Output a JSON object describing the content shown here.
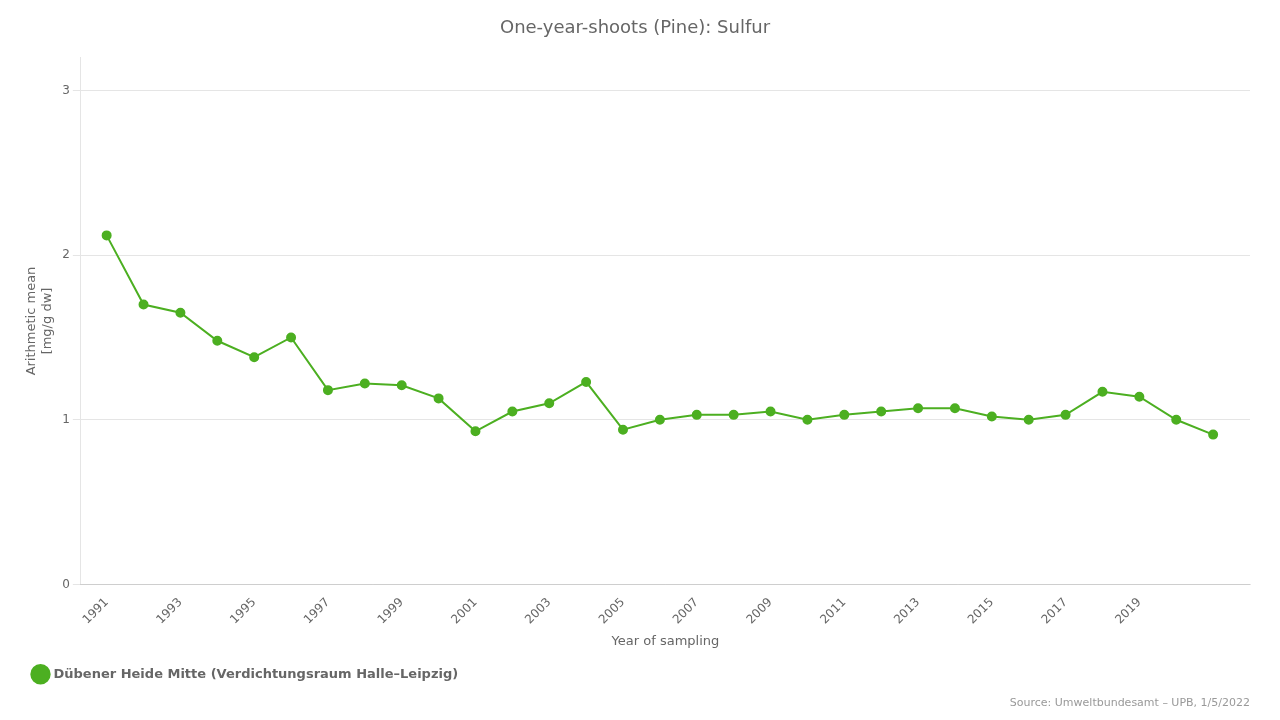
{
  "chart_data": {
    "type": "line",
    "title": "One-year-shoots (Pine): Sulfur",
    "xlabel": "Year of sampling",
    "ylabel": "Arithmetic mean\n[mg/g dw]",
    "annotations": [
      "Source: Umweltbundesamt – UPB, 1/5/2022"
    ],
    "x": [
      1991,
      1992,
      1993,
      1994,
      1995,
      1996,
      1997,
      1998,
      1999,
      2000,
      2001,
      2002,
      2003,
      2004,
      2005,
      2006,
      2007,
      2008,
      2009,
      2010,
      2011,
      2012,
      2013,
      2014,
      2015,
      2016,
      2017,
      2018,
      2019,
      2020,
      2021
    ],
    "series": [
      {
        "name": "Dübener Heide Mitte (Verdichtungsraum Halle–Leipzig)",
        "color": "#4caf21",
        "marker": "circle",
        "values": [
          2.12,
          1.7,
          1.65,
          1.48,
          1.38,
          1.5,
          1.18,
          1.22,
          1.21,
          1.13,
          0.93,
          1.05,
          1.1,
          1.23,
          0.94,
          1.0,
          1.03,
          1.03,
          1.05,
          1.0,
          1.03,
          1.05,
          1.07,
          1.07,
          1.02,
          1.0,
          1.03,
          1.17,
          1.14,
          1.0,
          0.91
        ]
      }
    ],
    "xlim": [
      1990.3,
      2022.0
    ],
    "xticks": [
      1991,
      1993,
      1995,
      1997,
      1999,
      2001,
      2003,
      2005,
      2007,
      2009,
      2011,
      2013,
      2015,
      2017,
      2019
    ],
    "ylim": [
      0,
      3.2
    ],
    "yticks": [
      0,
      1,
      2,
      3
    ],
    "grid": "y",
    "legend": "bottom"
  }
}
